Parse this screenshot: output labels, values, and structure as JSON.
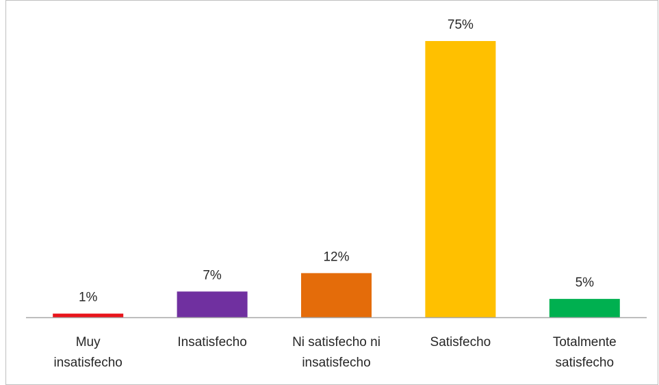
{
  "chart_data": {
    "type": "bar",
    "categories": [
      [
        "Muy",
        "insatisfecho"
      ],
      [
        "Insatisfecho"
      ],
      [
        "Ni satisfecho ni",
        "insatisfecho"
      ],
      [
        "Satisfecho"
      ],
      [
        "Totalmente",
        "satisfecho"
      ]
    ],
    "values": [
      1,
      7,
      12,
      75,
      5
    ],
    "value_labels": [
      "1%",
      "7%",
      "12%",
      "75%",
      "5%"
    ],
    "colors": [
      "#e8141b",
      "#7030a0",
      "#e46c0a",
      "#ffc000",
      "#00b050"
    ],
    "title": "",
    "xlabel": "",
    "ylabel": "",
    "ylim": [
      0,
      80
    ],
    "grid": false,
    "legend": "none"
  }
}
